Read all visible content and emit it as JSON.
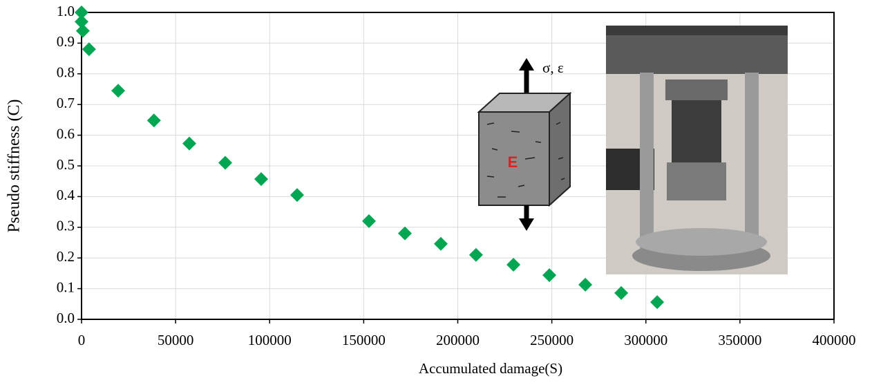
{
  "chart_data": {
    "type": "scatter",
    "x_label": "Accumulated damage(S)",
    "y_label": "Pseudo stiffness (C)",
    "annotations": [
      "σ, ε",
      "E"
    ],
    "color": "#00a651",
    "grid": true,
    "xlim": [
      0,
      400000
    ],
    "xticks": [
      0,
      50000,
      100000,
      150000,
      200000,
      250000,
      300000,
      350000,
      400000
    ],
    "ylim": [
      0,
      1
    ],
    "yticks": [
      {
        "value": 0,
        "label": "0.0"
      },
      0.1,
      0.2,
      0.3,
      0.4,
      0.5,
      0.6,
      0.7,
      0.8,
      0.9,
      {
        "value": 1,
        "label": "1.0"
      }
    ],
    "x": [
      0,
      0,
      700,
      4000,
      19500,
      38500,
      57300,
      76400,
      95500,
      114600,
      152800,
      171900,
      191000,
      209700,
      229600,
      248700,
      267800,
      286900,
      306000
    ],
    "values": [
      1.0,
      0.97,
      0.94,
      0.88,
      0.745,
      0.648,
      0.573,
      0.51,
      0.457,
      0.405,
      0.32,
      0.28,
      0.246,
      0.21,
      0.178,
      0.144,
      0.113,
      0.086,
      0.056
    ]
  }
}
